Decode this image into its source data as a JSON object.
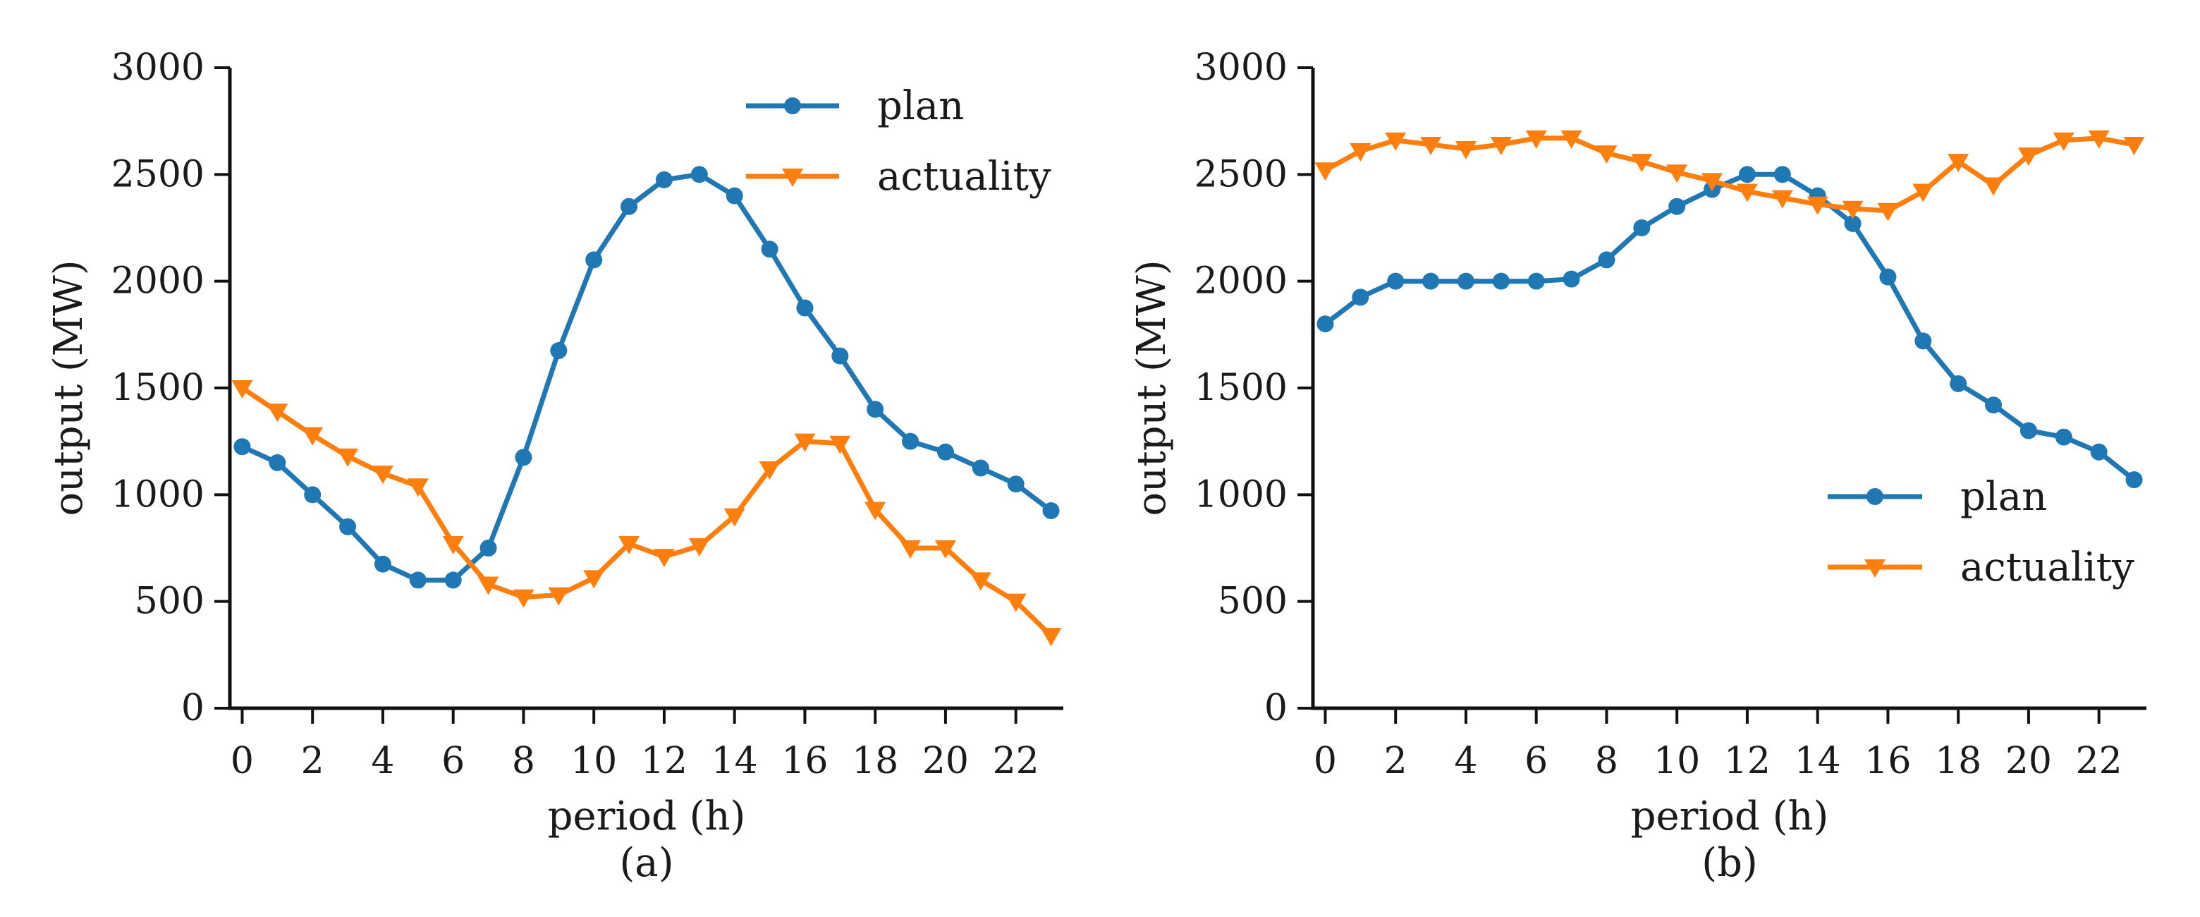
{
  "chart_data": [
    {
      "type": "line",
      "panel_label": "(a)",
      "xlabel": "period (h)",
      "ylabel": "output (MW)",
      "xlim": [
        -0.35,
        23.35
      ],
      "ylim": [
        0,
        3000
      ],
      "xticks": [
        0,
        2,
        4,
        6,
        8,
        10,
        12,
        14,
        16,
        18,
        20,
        22
      ],
      "yticks": [
        0,
        500,
        1000,
        1500,
        2000,
        2500,
        3000
      ],
      "grid": false,
      "legend_position": "top-right",
      "x": [
        0,
        1,
        2,
        3,
        4,
        5,
        6,
        7,
        8,
        9,
        10,
        11,
        12,
        13,
        14,
        15,
        16,
        17,
        18,
        19,
        20,
        21,
        22,
        23
      ],
      "series": [
        {
          "name": "plan",
          "color": "#1f77b4",
          "marker": "circle",
          "values": [
            1225,
            1150,
            1000,
            850,
            675,
            600,
            600,
            750,
            1175,
            1675,
            2100,
            2350,
            2475,
            2500,
            2400,
            2150,
            1875,
            1650,
            1400,
            1250,
            1200,
            1125,
            1050,
            925
          ]
        },
        {
          "name": "actuality",
          "color": "#ff7f0e",
          "marker": "triangle-down",
          "values": [
            1500,
            1390,
            1280,
            1180,
            1100,
            1040,
            770,
            580,
            520,
            530,
            610,
            770,
            710,
            760,
            900,
            1120,
            1250,
            1240,
            930,
            750,
            750,
            600,
            500,
            340
          ]
        }
      ]
    },
    {
      "type": "line",
      "panel_label": "(b)",
      "xlabel": "period (h)",
      "ylabel": "output (MW)",
      "xlim": [
        -0.35,
        23.35
      ],
      "ylim": [
        0,
        3000
      ],
      "xticks": [
        0,
        2,
        4,
        6,
        8,
        10,
        12,
        14,
        16,
        18,
        20,
        22
      ],
      "yticks": [
        0,
        500,
        1000,
        1500,
        2000,
        2500,
        3000
      ],
      "grid": false,
      "legend_position": "center-right",
      "x": [
        0,
        1,
        2,
        3,
        4,
        5,
        6,
        7,
        8,
        9,
        10,
        11,
        12,
        13,
        14,
        15,
        16,
        17,
        18,
        19,
        20,
        21,
        22,
        23
      ],
      "series": [
        {
          "name": "plan",
          "color": "#1f77b4",
          "marker": "circle",
          "values": [
            1800,
            1925,
            2000,
            2000,
            2000,
            2000,
            2000,
            2010,
            2100,
            2250,
            2350,
            2430,
            2500,
            2500,
            2400,
            2270,
            2020,
            1720,
            1520,
            1420,
            1300,
            1270,
            1200,
            1070
          ]
        },
        {
          "name": "actuality",
          "color": "#ff7f0e",
          "marker": "triangle-down",
          "values": [
            2520,
            2610,
            2660,
            2640,
            2620,
            2640,
            2670,
            2670,
            2600,
            2560,
            2510,
            2470,
            2420,
            2390,
            2360,
            2340,
            2330,
            2420,
            2560,
            2450,
            2590,
            2660,
            2670,
            2640
          ]
        }
      ]
    }
  ]
}
